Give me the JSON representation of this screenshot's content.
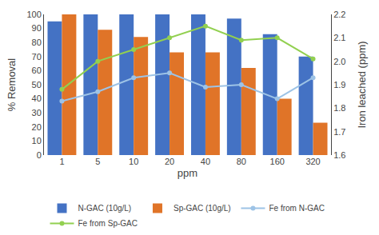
{
  "chart_data": {
    "type": "bar",
    "categories": [
      "1",
      "5",
      "10",
      "20",
      "40",
      "80",
      "160",
      "320"
    ],
    "xlabel": "ppm",
    "ylabel": "% Removal",
    "y2label": "Iron leached (ppm)",
    "series": [
      {
        "name": "N-GAC (10g/L)",
        "type": "bar",
        "color": "#4472C4",
        "values": [
          95,
          100,
          100,
          100,
          100,
          97,
          86,
          70
        ]
      },
      {
        "name": "Sp-GAC (10g/L)",
        "type": "bar",
        "color": "#E07428",
        "values": [
          100,
          89,
          84,
          73,
          73,
          62,
          40,
          23
        ]
      },
      {
        "name": "Fe from N-GAC",
        "type": "line",
        "axis": "y2",
        "marker": "circle",
        "line_style": "solid",
        "color": "#9DC3E6",
        "values": [
          1.83,
          1.87,
          1.93,
          1.95,
          1.89,
          1.9,
          1.84,
          1.93
        ]
      },
      {
        "name": "Fe from Sp-GAC",
        "type": "line",
        "axis": "y2",
        "marker": "circle",
        "line_style": "solid",
        "color": "#92D050",
        "values": [
          1.88,
          2.0,
          2.05,
          2.1,
          2.15,
          2.09,
          2.1,
          2.01
        ]
      }
    ],
    "ylim": [
      0,
      100
    ],
    "yticks": [
      0,
      10,
      20,
      30,
      40,
      50,
      60,
      70,
      80,
      90,
      100
    ],
    "y2lim": [
      1.6,
      2.2
    ],
    "y2ticks": [
      1.6,
      1.7,
      1.8,
      1.9,
      {
        "value": 2.0,
        "label": "2.0"
      },
      2.1,
      2.2
    ],
    "grid": false,
    "legend": "bottom"
  }
}
